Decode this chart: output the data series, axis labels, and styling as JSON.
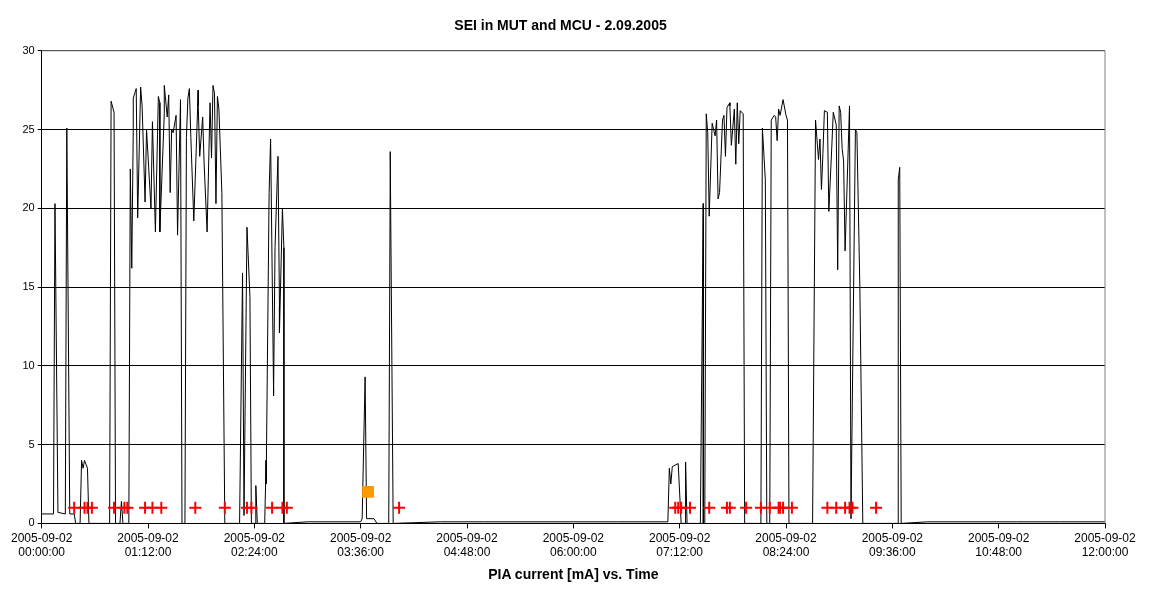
{
  "chart_data": {
    "type": "line",
    "title": "SEI in MUT and MCU - 2.09.2005",
    "xlabel": "PIA current [mA] vs. Time",
    "xlim": [
      "2005-09-02T00:00",
      "2005-09-02T12:00"
    ],
    "xticks": [
      {
        "value": "2005-09-02T00:00",
        "label": "2005-09-02 00:00:00"
      },
      {
        "value": "2005-09-02T01:12",
        "label": "2005-09-02 01:12:00"
      },
      {
        "value": "2005-09-02T02:24",
        "label": "2005-09-02 02:24:00"
      },
      {
        "value": "2005-09-02T03:36",
        "label": "2005-09-02 03:36:00"
      },
      {
        "value": "2005-09-02T04:48",
        "label": "2005-09-02 04:48:00"
      },
      {
        "value": "2005-09-02T06:00",
        "label": "2005-09-02 06:00:00"
      },
      {
        "value": "2005-09-02T07:12",
        "label": "2005-09-02 07:12:00"
      },
      {
        "value": "2005-09-02T08:24",
        "label": "2005-09-02 08:24:00"
      },
      {
        "value": "2005-09-02T09:36",
        "label": "2005-09-02 09:36:00"
      },
      {
        "value": "2005-09-02T10:48",
        "label": "2005-09-02 10:48:00"
      },
      {
        "value": "2005-09-02T12:00",
        "label": "2005-09-02 12:00:00"
      }
    ],
    "ylim": [
      0,
      30
    ],
    "yticks": [
      0,
      5,
      10,
      15,
      20,
      25,
      30
    ],
    "grid": "y",
    "legend": false,
    "series": [
      {
        "type": "line",
        "color": "#000000",
        "marker": "none",
        "x": [
          "2005-09-02T00:00",
          "2005-09-02T00:08",
          "2005-09-02T00:09",
          "2005-09-02T00:11",
          "2005-09-02T00:16",
          "2005-09-02T00:17",
          "2005-09-02T00:19",
          "2005-09-02T00:22",
          "2005-09-02T00:23",
          "2005-09-02T00:26",
          "2005-09-02T00:27",
          "2005-09-02T00:28",
          "2005-09-02T00:29",
          "2005-09-02T00:31",
          "2005-09-02T00:32",
          "2005-09-02T00:46",
          "2005-09-02T00:47",
          "2005-09-02T00:49",
          "2005-09-02T00:50",
          "2005-09-02T00:53",
          "2005-09-02T00:54",
          "2005-09-02T00:55",
          "2005-09-02T00:59",
          "2005-09-02T01:00",
          "2005-09-02T01:01",
          "2005-09-02T01:02",
          "2005-09-02T01:02",
          "2005-09-02T01:04",
          "2005-09-02T01:05",
          "2005-09-02T01:07",
          "2005-09-02T01:08",
          "2005-09-02T01:10",
          "2005-09-02T01:11",
          "2005-09-02T01:14",
          "2005-09-02T01:15",
          "2005-09-02T01:17",
          "2005-09-02T01:19",
          "2005-09-02T01:20",
          "2005-09-02T01:20",
          "2005-09-02T01:23",
          "2005-09-02T01:23",
          "2005-09-02T01:25",
          "2005-09-02T01:26",
          "2005-09-02T01:27",
          "2005-09-02T01:28",
          "2005-09-02T01:29",
          "2005-09-02T01:31",
          "2005-09-02T01:32",
          "2005-09-02T01:34",
          "2005-09-02T01:35",
          "2005-09-02T01:37",
          "2005-09-02T01:38",
          "2005-09-02T01:39",
          "2005-09-02T01:40",
          "2005-09-02T01:41",
          "2005-09-02T01:43",
          "2005-09-02T01:46",
          "2005-09-02T01:46",
          "2005-09-02T01:47",
          "2005-09-02T01:49",
          "2005-09-02T01:50",
          "2005-09-02T01:52",
          "2005-09-02T01:54",
          "2005-09-02T01:55",
          "2005-09-02T01:56",
          "2005-09-02T01:57",
          "2005-09-02T01:58",
          "2005-09-02T01:59",
          "2005-09-02T02:00",
          "2005-09-02T02:02",
          "2005-09-02T02:04",
          "2005-09-02T02:14",
          "2005-09-02T02:16",
          "2005-09-02T02:17",
          "2005-09-02T02:19",
          "2005-09-02T02:21",
          "2005-09-02T02:22",
          "2005-09-02T02:25",
          "2005-09-02T02:25",
          "2005-09-02T02:26",
          "2005-09-02T02:31",
          "2005-09-02T02:32",
          "2005-09-02T02:32",
          "2005-09-02T02:34",
          "2005-09-02T02:35",
          "2005-09-02T02:37",
          "2005-09-02T02:37",
          "2005-09-02T02:38",
          "2005-09-02T02:40",
          "2005-09-02T02:41",
          "2005-09-02T02:41",
          "2005-09-02T02:43",
          "2005-09-02T02:44",
          "2005-09-02T02:44",
          "2005-09-02T03:00",
          "2005-09-02T03:18",
          "2005-09-02T03:36",
          "2005-09-02T03:37",
          "2005-09-02T03:39",
          "2005-09-02T03:40",
          "2005-09-02T03:45",
          "2005-09-02T03:47",
          "2005-09-02T03:55",
          "2005-09-02T03:56",
          "2005-09-02T03:56",
          "2005-09-02T03:58",
          "2005-09-02T04:30",
          "2005-09-02T05:00",
          "2005-09-02T05:30",
          "2005-09-02T06:00",
          "2005-09-02T06:30",
          "2005-09-02T07:04",
          "2005-09-02T07:05",
          "2005-09-02T07:06",
          "2005-09-02T07:07",
          "2005-09-02T07:11",
          "2005-09-02T07:13",
          "2005-09-02T07:16",
          "2005-09-02T07:16",
          "2005-09-02T07:17",
          "2005-09-02T07:26",
          "2005-09-02T07:28",
          "2005-09-02T07:28",
          "2005-09-02T07:29",
          "2005-09-02T07:30",
          "2005-09-02T07:31",
          "2005-09-02T07:32",
          "2005-09-02T07:34",
          "2005-09-02T07:36",
          "2005-09-02T07:37",
          "2005-09-02T07:38",
          "2005-09-02T07:39",
          "2005-09-02T07:41",
          "2005-09-02T07:42",
          "2005-09-02T07:43",
          "2005-09-02T07:44",
          "2005-09-02T07:44",
          "2005-09-02T07:46",
          "2005-09-02T07:46",
          "2005-09-02T07:47",
          "2005-09-02T07:49",
          "2005-09-02T07:50",
          "2005-09-02T07:51",
          "2005-09-02T07:52",
          "2005-09-02T07:53",
          "2005-09-02T07:55",
          "2005-09-02T07:56",
          "2005-09-02T08:07",
          "2005-09-02T08:08",
          "2005-09-02T08:10",
          "2005-09-02T08:10",
          "2005-09-02T08:11",
          "2005-09-02T08:13",
          "2005-09-02T08:14",
          "2005-09-02T08:16",
          "2005-09-02T08:17",
          "2005-09-02T08:18",
          "2005-09-02T08:19",
          "2005-09-02T08:20",
          "2005-09-02T08:22",
          "2005-09-02T08:24",
          "2005-09-02T08:25",
          "2005-09-02T08:26",
          "2005-09-02T08:42",
          "2005-09-02T08:44",
          "2005-09-02T08:46",
          "2005-09-02T08:47",
          "2005-09-02T08:48",
          "2005-09-02T08:49",
          "2005-09-02T08:50",
          "2005-09-02T08:52",
          "2005-09-02T08:53",
          "2005-09-02T08:55",
          "2005-09-02T08:56",
          "2005-09-02T08:58",
          "2005-09-02T08:59",
          "2005-09-02T09:00",
          "2005-09-02T09:01",
          "2005-09-02T09:02",
          "2005-09-02T09:03",
          "2005-09-02T09:04",
          "2005-09-02T09:07",
          "2005-09-02T09:08",
          "2005-09-02T09:11",
          "2005-09-02T09:12",
          "2005-09-02T09:14",
          "2005-09-02T09:16",
          "2005-09-02T09:40",
          "2005-09-02T09:40",
          "2005-09-02T09:41",
          "2005-09-02T09:42",
          "2005-09-02T10:00",
          "2005-09-02T10:30",
          "2005-09-02T11:00",
          "2005-09-02T11:30",
          "2005-09-02T12:00"
        ],
        "values": [
          0.6,
          0.6,
          20.3,
          0.7,
          0.6,
          25.1,
          0.6,
          0.6,
          0,
          0,
          4.0,
          3.5,
          4.0,
          3.5,
          0,
          0,
          26.8,
          26.1,
          0,
          0,
          1.4,
          0,
          0,
          22.5,
          16.2,
          25,
          27,
          27.6,
          19.4,
          27.7,
          26.5,
          20.4,
          25,
          20,
          25.5,
          18.5,
          27.1,
          26.7,
          18.5,
          26,
          27.8,
          25.8,
          27.2,
          21,
          25,
          24.8,
          25.9,
          18.3,
          26.9,
          0,
          0,
          24.5,
          27,
          27.6,
          24.5,
          19.2,
          27.5,
          26.5,
          23.3,
          25.8,
          22.8,
          18.5,
          26.7,
          23.2,
          27.8,
          27.3,
          20.3,
          27.1,
          26.3,
          21,
          0,
          0,
          15.9,
          0.5,
          18.8,
          14.4,
          0,
          0,
          2.4,
          0,
          0,
          4.0,
          2.5,
          21,
          24.4,
          8.5,
          8.1,
          17.5,
          23.3,
          13.8,
          12.1,
          20,
          17.5,
          0,
          0.1,
          0.1,
          0.1,
          0.3,
          9.3,
          0.3,
          0.3,
          0,
          0,
          22.5,
          23.6,
          0,
          0.1,
          0.1,
          0.1,
          0.1,
          0.1,
          0.1,
          3.5,
          2.5,
          3.6,
          3.8,
          0,
          0,
          3.9,
          0,
          0,
          20.3,
          0,
          0,
          26,
          24.8,
          19.5,
          25.4,
          24.6,
          25.6,
          20.6,
          21,
          25.6,
          25.9,
          23.3,
          26.3,
          26.4,
          26.7,
          26.5,
          24,
          26.3,
          22.8,
          26.7,
          24.1,
          26.2,
          26,
          0,
          0,
          25.1,
          21.8,
          21.8,
          0,
          0,
          25.6,
          25.9,
          25.8,
          24.3,
          26.3,
          25.9,
          26.9,
          25.9,
          25.6,
          0,
          0,
          25.6,
          23.1,
          24.4,
          21.2,
          23.5,
          26.2,
          26.1,
          19.8,
          23.9,
          26.1,
          25.3,
          16.1,
          26.5,
          26.1,
          23.8,
          23,
          17.3,
          26.5,
          0.3,
          25,
          24.8,
          15,
          0,
          0,
          21.8,
          22.6,
          0,
          0.1,
          0.1,
          0.1,
          0.1,
          0.1
        ]
      },
      {
        "type": "scatter",
        "color": "#ff0000",
        "marker": "cross",
        "x": [
          "2005-09-02T00:22",
          "2005-09-02T00:29",
          "2005-09-02T00:31",
          "2005-09-02T00:33",
          "2005-09-02T00:34",
          "2005-09-02T00:49",
          "2005-09-02T00:56",
          "2005-09-02T00:58",
          "2005-09-02T01:10",
          "2005-09-02T01:15",
          "2005-09-02T01:21",
          "2005-09-02T01:44",
          "2005-09-02T02:04",
          "2005-09-02T02:19",
          "2005-09-02T02:22",
          "2005-09-02T02:36",
          "2005-09-02T02:43",
          "2005-09-02T02:46",
          "2005-09-02T04:02",
          "2005-09-02T07:09",
          "2005-09-02T07:11",
          "2005-09-02T07:13",
          "2005-09-02T07:19",
          "2005-09-02T07:32",
          "2005-09-02T07:44",
          "2005-09-02T07:46",
          "2005-09-02T07:57",
          "2005-09-02T08:07",
          "2005-09-02T08:13",
          "2005-09-02T08:19",
          "2005-09-02T08:20",
          "2005-09-02T08:22",
          "2005-09-02T08:28",
          "2005-09-02T08:52",
          "2005-09-02T08:58",
          "2005-09-02T09:04",
          "2005-09-02T09:07",
          "2005-09-02T09:09",
          "2005-09-02T09:25"
        ],
        "values": [
          1,
          1,
          1,
          null,
          1,
          1,
          1,
          1,
          1,
          1,
          1,
          1,
          1,
          1,
          1,
          1,
          1,
          1,
          1,
          1,
          1,
          1,
          1,
          1,
          1,
          1,
          1,
          1,
          1,
          1,
          1,
          1,
          1,
          1,
          1,
          1,
          1,
          1,
          1
        ]
      },
      {
        "type": "scatter",
        "color": "#ff9900",
        "marker": "square",
        "x": [
          "2005-09-02T03:41"
        ],
        "values": [
          2
        ]
      }
    ]
  }
}
